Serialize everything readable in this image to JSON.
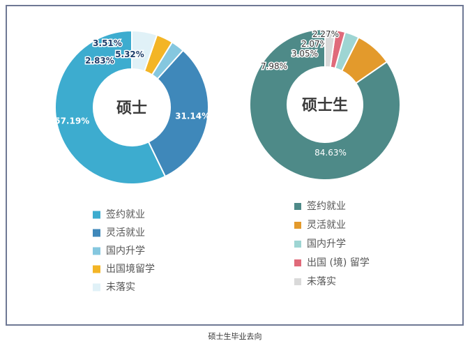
{
  "caption": "硕士生毕业去向",
  "chart_data": [
    {
      "type": "pie",
      "donut": true,
      "title": "硕士",
      "categories": [
        "签约就业",
        "灵活就业",
        "国内升学",
        "出国境留学",
        "未落实"
      ],
      "values": [
        57.19,
        31.14,
        2.83,
        3.51,
        5.32
      ],
      "value_labels": [
        "57.19%",
        "31.14%",
        "2.83%",
        "3.51%",
        "5.32%"
      ],
      "colors": [
        "#3daccf",
        "#3f88ba",
        "#85c7df",
        "#f3b526",
        "#e0f1f7"
      ],
      "legend_labels": [
        "签约就业",
        "灵活就业",
        "国内升学",
        "出国境留学",
        "未落实"
      ],
      "legend_position": "bottom"
    },
    {
      "type": "pie",
      "donut": true,
      "title": "硕士生",
      "categories": [
        "签约就业",
        "灵活就业",
        "国内升学",
        "出国(境)留学",
        "未落实"
      ],
      "values": [
        84.63,
        7.98,
        3.05,
        2.07,
        2.27
      ],
      "value_labels": [
        "84.63%",
        "7.98%",
        "3.05%",
        "2.07%",
        "2.27%"
      ],
      "colors": [
        "#4e8a88",
        "#e39a2c",
        "#9ed5d3",
        "#e06a7a",
        "#d9d9d9"
      ],
      "legend_labels": [
        "签约就业",
        "灵活就业",
        "国内升学",
        "出国 (境) 留学",
        "未落实"
      ],
      "legend_position": "bottom"
    }
  ]
}
